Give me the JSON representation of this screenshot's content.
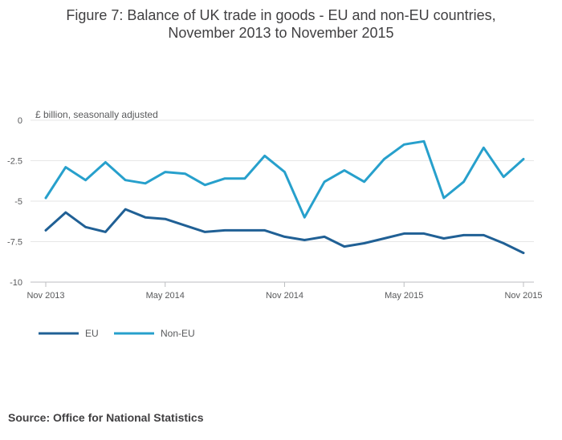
{
  "figure": {
    "title_line1": "Figure 7: Balance of UK trade in goods - EU and non-EU countries,",
    "title_line2": "November 2013 to November 2015",
    "source": "Source: Office for National Statistics"
  },
  "chart_data": {
    "type": "line",
    "title": "Figure 7: Balance of UK trade in goods - EU and non-EU countries, November 2013 to November 2015",
    "ylabel": "£ billion, seasonally adjusted",
    "xlabel": "",
    "x": [
      "Nov 2013",
      "Dec 2013",
      "Jan 2014",
      "Feb 2014",
      "Mar 2014",
      "Apr 2014",
      "May 2014",
      "Jun 2014",
      "Jul 2014",
      "Aug 2014",
      "Sep 2014",
      "Oct 2014",
      "Nov 2014",
      "Dec 2014",
      "Jan 2015",
      "Feb 2015",
      "Mar 2015",
      "Apr 2015",
      "May 2015",
      "Jun 2015",
      "Jul 2015",
      "Aug 2015",
      "Sep 2015",
      "Oct 2015",
      "Nov 2015"
    ],
    "x_ticks": [
      {
        "index": 0,
        "label": "Nov 2013"
      },
      {
        "index": 6,
        "label": "May 2014"
      },
      {
        "index": 12,
        "label": "Nov 2014"
      },
      {
        "index": 18,
        "label": "May 2015"
      },
      {
        "index": 24,
        "label": "Nov 2015"
      }
    ],
    "y_ticks": [
      {
        "value": 0,
        "label": "0"
      },
      {
        "value": -2.5,
        "label": "-2.5"
      },
      {
        "value": -5,
        "label": "-5"
      },
      {
        "value": -7.5,
        "label": "-7.5"
      },
      {
        "value": -10,
        "label": "-10"
      }
    ],
    "ylim": [
      -10,
      0
    ],
    "grid": true,
    "legend_position": "bottom-left",
    "series": [
      {
        "name": "EU",
        "color": "#206095",
        "values": [
          -6.8,
          -5.7,
          -6.6,
          -6.9,
          -5.5,
          -6.0,
          -6.1,
          -6.5,
          -6.9,
          -6.8,
          -6.8,
          -6.8,
          -7.2,
          -7.4,
          -7.2,
          -7.8,
          -7.6,
          -7.3,
          -7.0,
          -7.0,
          -7.3,
          -7.1,
          -7.1,
          -7.6,
          -8.2
        ]
      },
      {
        "name": "Non-EU",
        "color": "#27a0cc",
        "values": [
          -4.8,
          -2.9,
          -3.7,
          -2.6,
          -3.7,
          -3.9,
          -3.2,
          -3.3,
          -4.0,
          -3.6,
          -3.6,
          -2.2,
          -3.2,
          -6.0,
          -3.8,
          -3.1,
          -3.8,
          -2.4,
          -1.5,
          -1.3,
          -4.8,
          -3.8,
          -1.7,
          -3.5,
          -2.4
        ]
      }
    ]
  }
}
